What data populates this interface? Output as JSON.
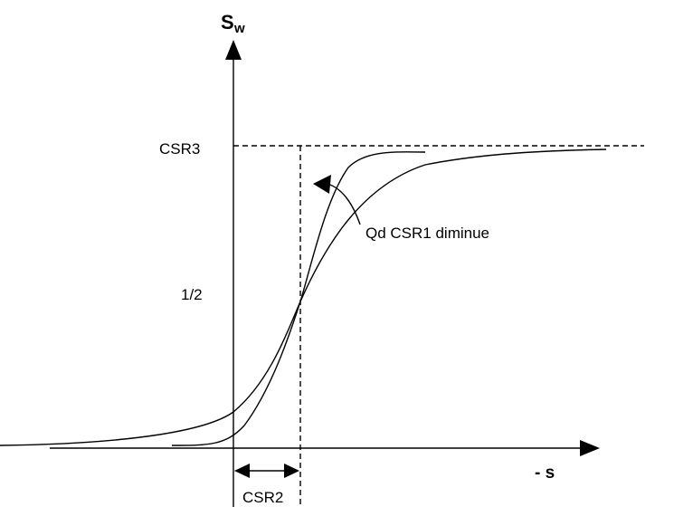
{
  "axes": {
    "y_label": "S",
    "y_label_sub": "w",
    "x_label": "- s"
  },
  "levels": {
    "top": "CSR3",
    "half": "1/2"
  },
  "annotation": "Qd CSR1 diminue",
  "width_label": "CSR2"
}
